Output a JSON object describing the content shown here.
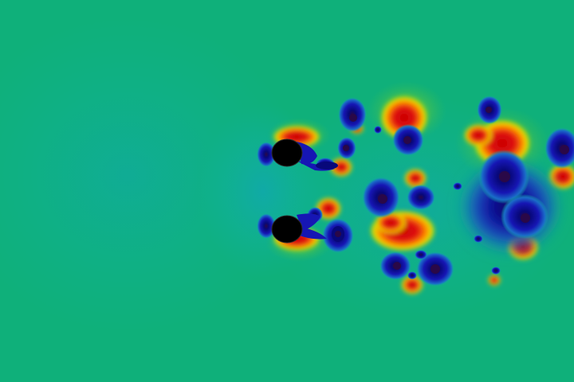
{
  "scene": {
    "kind": "cfd-pressure-field",
    "description_visible_text": "",
    "cylinders": [
      {
        "id": "upper",
        "shape": "circle"
      },
      {
        "id": "lower",
        "shape": "circle"
      }
    ],
    "colors": {
      "background": "#0fb07a",
      "cyan_field": "#10b4a4",
      "deep_blue": "#1616b4",
      "dark_blue": "#08087a",
      "navy_core": "#2a0848",
      "red": "#dd0808",
      "orange": "#ff8a00",
      "yellow": "#e6e600",
      "green_light": "#66cc22",
      "cylinder_fill": "#000000"
    }
  }
}
